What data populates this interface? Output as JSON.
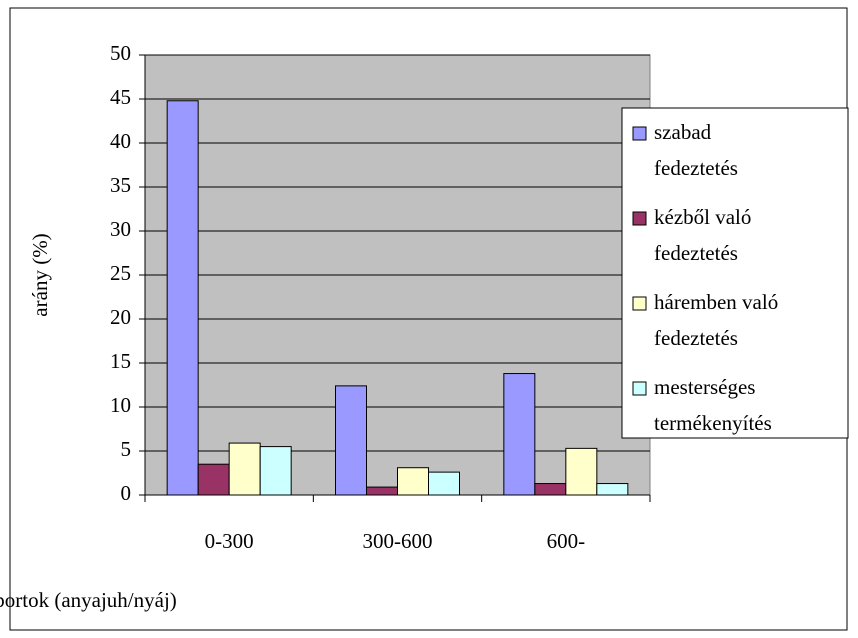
{
  "chart_data": {
    "type": "bar",
    "categories": [
      "0-300",
      "300-600",
      "600-"
    ],
    "series": [
      {
        "name": "szabad fedeztetés",
        "color": "#9999ff",
        "values": [
          44.8,
          12.4,
          13.8
        ]
      },
      {
        "name": "kézből való fedeztetés",
        "color": "#993366",
        "values": [
          3.5,
          0.9,
          1.3
        ]
      },
      {
        "name": "háremben való fedeztetés",
        "color": "#ffffcc",
        "values": [
          5.9,
          3.1,
          5.3
        ]
      },
      {
        "name": "mesterséges termékenyítés",
        "color": "#ccffff",
        "values": [
          5.5,
          2.6,
          1.3
        ]
      }
    ],
    "ylim": [
      0,
      50
    ],
    "yticks": [
      0,
      5,
      10,
      15,
      20,
      25,
      30,
      35,
      40,
      45,
      50
    ],
    "xlabel": "méret csoportok (anyajuh/nyáj)",
    "ylabel": "arány (%)",
    "grid": true,
    "legend": "right",
    "plot_background": "#c0c0c0"
  }
}
